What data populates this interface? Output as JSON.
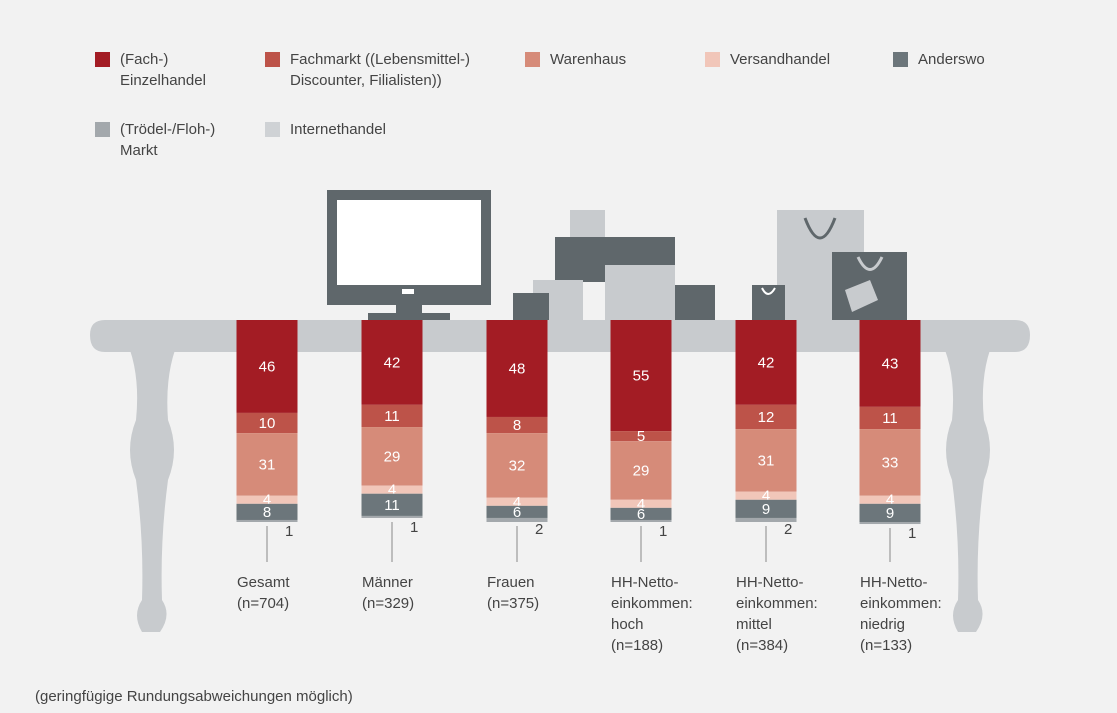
{
  "chart_data": {
    "type": "stacked_bar",
    "categories": [
      "Gesamt\n(n=704)",
      "Männer\n(n=329)",
      "Frauen\n(n=375)",
      "HH-Netto-\neinkommen:\nhoch\n(n=188)",
      "HH-Netto-\neinkommen:\nmittel\n(n=384)",
      "HH-Netto-\neinkommen:\nniedrig\n(n=133)"
    ],
    "series": [
      {
        "name": "(Fach-)\nEinzelhandel",
        "color": "#a31c24",
        "values": [
          46,
          42,
          48,
          55,
          42,
          43
        ]
      },
      {
        "name": "Fachmarkt ((Lebensmittel-)\nDiscounter, Filialisten))",
        "color": "#bd5349",
        "values": [
          10,
          11,
          8,
          5,
          12,
          11
        ]
      },
      {
        "name": "Warenhaus",
        "color": "#d68b79",
        "values": [
          31,
          29,
          32,
          29,
          31,
          33
        ]
      },
      {
        "name": "Versandhandel",
        "color": "#f1c6b9",
        "values": [
          4,
          4,
          4,
          4,
          4,
          4
        ]
      },
      {
        "name": "Anderswo",
        "color": "#6c767b",
        "values": [
          8,
          11,
          6,
          6,
          9,
          9
        ]
      },
      {
        "name": "(Trödel-/Floh-)\nMarkt",
        "color": "#a3a8ac",
        "values": [
          1,
          1,
          2,
          1,
          2,
          1
        ]
      },
      {
        "name": "Internethandel",
        "color": "#cfd2d5",
        "values": [
          null,
          null,
          null,
          null,
          null,
          null
        ]
      }
    ],
    "legend": "top-left",
    "footnote": "(geringfügige Rundungsabweichungen möglich)"
  }
}
